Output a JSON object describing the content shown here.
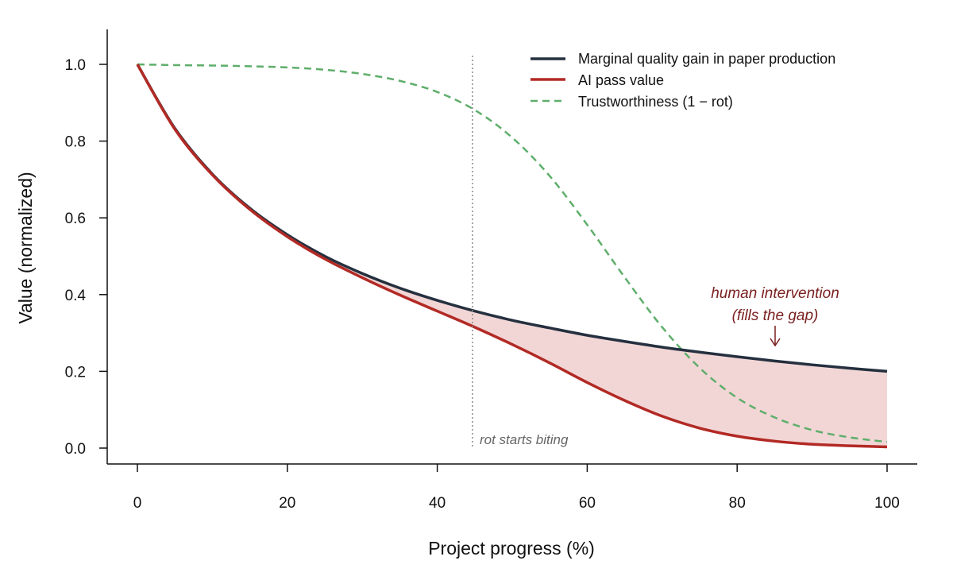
{
  "chart_data": {
    "type": "line",
    "title": "",
    "xlabel": "Project progress (%)",
    "ylabel": "Value (normalized)",
    "xlim": [
      -4,
      104
    ],
    "ylim": [
      -0.04,
      1.09
    ],
    "xticks": [
      0,
      20,
      40,
      60,
      80,
      100
    ],
    "xtick_labels": [
      "0",
      "20",
      "40",
      "60",
      "80",
      "100"
    ],
    "yticks": [
      0.0,
      0.2,
      0.4,
      0.6,
      0.8,
      1.0
    ],
    "ytick_labels": [
      "0.0",
      "0.2",
      "0.4",
      "0.6",
      "0.8",
      "1.0"
    ],
    "grid": false,
    "legend_position": "top-right",
    "x": [
      0,
      5,
      10,
      15,
      20,
      25,
      30,
      35,
      40,
      45,
      50,
      55,
      60,
      65,
      70,
      75,
      80,
      85,
      90,
      95,
      100
    ],
    "series": [
      {
        "name": "Marginal quality gain in paper production",
        "color": "#25303f",
        "style": "solid",
        "values": [
          1.0,
          0.833,
          0.714,
          0.625,
          0.556,
          0.5,
          0.455,
          0.417,
          0.385,
          0.357,
          0.333,
          0.313,
          0.294,
          0.278,
          0.263,
          0.25,
          0.238,
          0.227,
          0.217,
          0.208,
          0.2
        ]
      },
      {
        "name": "AI pass value",
        "color": "#b22a25",
        "style": "solid",
        "values": [
          1.0,
          0.831,
          0.712,
          0.622,
          0.551,
          0.493,
          0.444,
          0.399,
          0.357,
          0.315,
          0.27,
          0.222,
          0.171,
          0.124,
          0.083,
          0.052,
          0.031,
          0.018,
          0.01,
          0.006,
          0.003
        ]
      },
      {
        "name": "Trustworthiness (1 − rot)",
        "color": "#5fae6b",
        "style": "dashed",
        "values": [
          1.0,
          0.998,
          0.997,
          0.995,
          0.992,
          0.986,
          0.975,
          0.957,
          0.928,
          0.881,
          0.809,
          0.709,
          0.582,
          0.445,
          0.315,
          0.209,
          0.131,
          0.08,
          0.047,
          0.028,
          0.016
        ]
      }
    ],
    "fill_between": {
      "upper": "Marginal quality gain in paper production",
      "lower": "AI pass value",
      "color": "#f2d6d6"
    },
    "vline": {
      "x": 44.7,
      "label": "rot starts biting",
      "color": "#888888"
    },
    "annotation": {
      "lines": [
        "human intervention",
        "(fills the gap)"
      ],
      "x": 85,
      "arrow_to_y": 0.27,
      "color": "#7a1f1f"
    }
  }
}
